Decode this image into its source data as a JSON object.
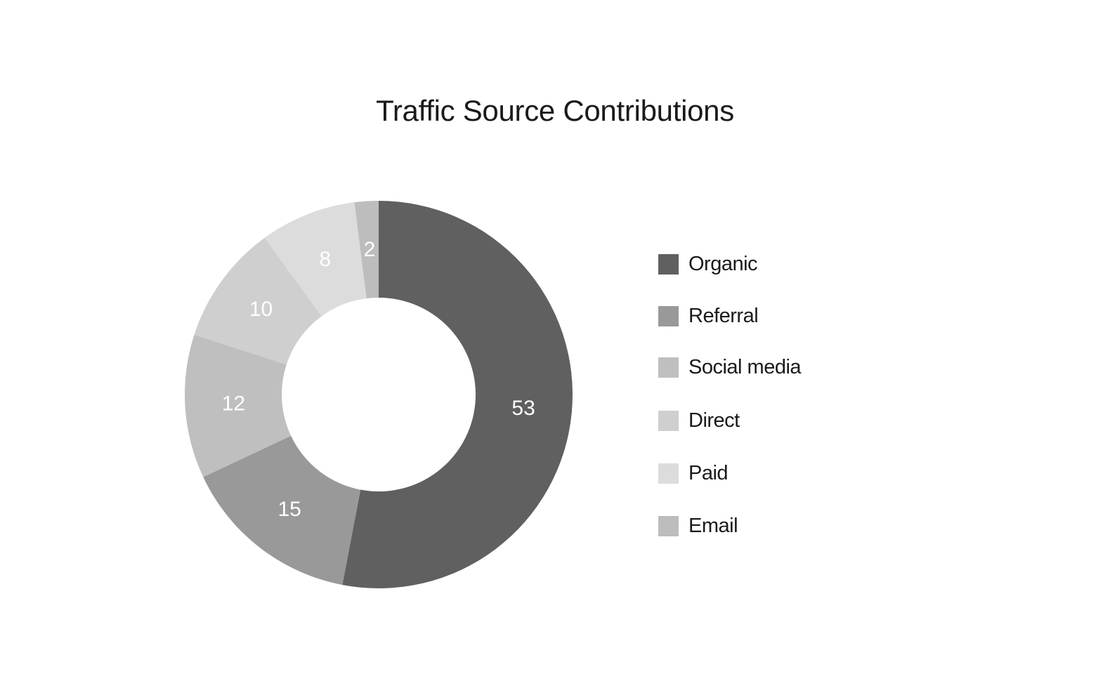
{
  "chart_data": {
    "type": "pie",
    "donut": true,
    "title": "Traffic Source Contributions",
    "legend_position": "right",
    "slices": [
      {
        "label": "Organic",
        "value": 53,
        "color": "#606060",
        "label_color": "#ffffff"
      },
      {
        "label": "Referral",
        "value": 15,
        "color": "#999999",
        "label_color": "#ffffff"
      },
      {
        "label": "Social media",
        "value": 12,
        "color": "#bfbfbf",
        "label_color": "#ffffff"
      },
      {
        "label": "Direct",
        "value": 10,
        "color": "#cfcfcf",
        "label_color": "#ffffff"
      },
      {
        "label": "Paid",
        "value": 8,
        "color": "#dcdcdc",
        "label_color": "#ffffff"
      },
      {
        "label": "Email",
        "value": 2,
        "color": "#bdbdbd",
        "label_color": "#ffffff"
      }
    ]
  }
}
